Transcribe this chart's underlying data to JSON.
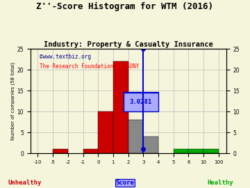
{
  "title": "Z''-Score Histogram for WTM (2016)",
  "subtitle": "Industry: Property & Casualty Insurance",
  "watermark1": "©www.textbiz.org",
  "watermark2": "The Research Foundation of SUNY",
  "xlabel_left": "Unhealthy",
  "xlabel_center": "Score",
  "xlabel_right": "Healthy",
  "ylabel_left": "Number of companies (58 total)",
  "tick_labels": [
    "-10",
    "-5",
    "-2",
    "-1",
    "0",
    "1",
    "2",
    "3",
    "4",
    "5",
    "6",
    "10",
    "100"
  ],
  "tick_positions": [
    0,
    1,
    2,
    3,
    4,
    5,
    6,
    7,
    8,
    9,
    10,
    11,
    12
  ],
  "bar_lefts": [
    0,
    1,
    2,
    3,
    4,
    5,
    6,
    7,
    9,
    10,
    11
  ],
  "bar_widths": [
    1,
    1,
    1,
    1,
    1,
    1,
    1,
    1,
    1,
    1,
    1
  ],
  "counts": [
    0,
    1,
    0,
    1,
    10,
    22,
    8,
    4,
    0,
    1,
    1,
    1
  ],
  "bar_display_lefts": [
    0,
    1,
    2,
    3,
    4,
    5,
    6,
    7,
    9,
    10,
    11
  ],
  "bar_display_counts": [
    0,
    1,
    0,
    1,
    10,
    22,
    8,
    4,
    1,
    1,
    1
  ],
  "bar_colors": [
    "red",
    "red",
    "red",
    "red",
    "red",
    "red",
    "gray",
    "gray",
    "green",
    "green",
    "green"
  ],
  "score_display_x": 7.0,
  "score_label": "3.0281",
  "ylim": [
    0,
    25
  ],
  "xlim": [
    -0.5,
    12.5
  ],
  "yticks_left": [
    0,
    5,
    10,
    15,
    20,
    25
  ],
  "yticks_right": [
    0,
    5,
    10,
    15,
    20,
    25
  ],
  "title_fontsize": 9,
  "subtitle_fontsize": 7.5,
  "bg_color": "#f5f5dc",
  "grid_color": "#bbbbbb",
  "red_color": "#cc0000",
  "gray_color": "#888888",
  "green_color": "#00aa00",
  "line_color": "#0000cc",
  "annotation_bg": "#aaaaff"
}
